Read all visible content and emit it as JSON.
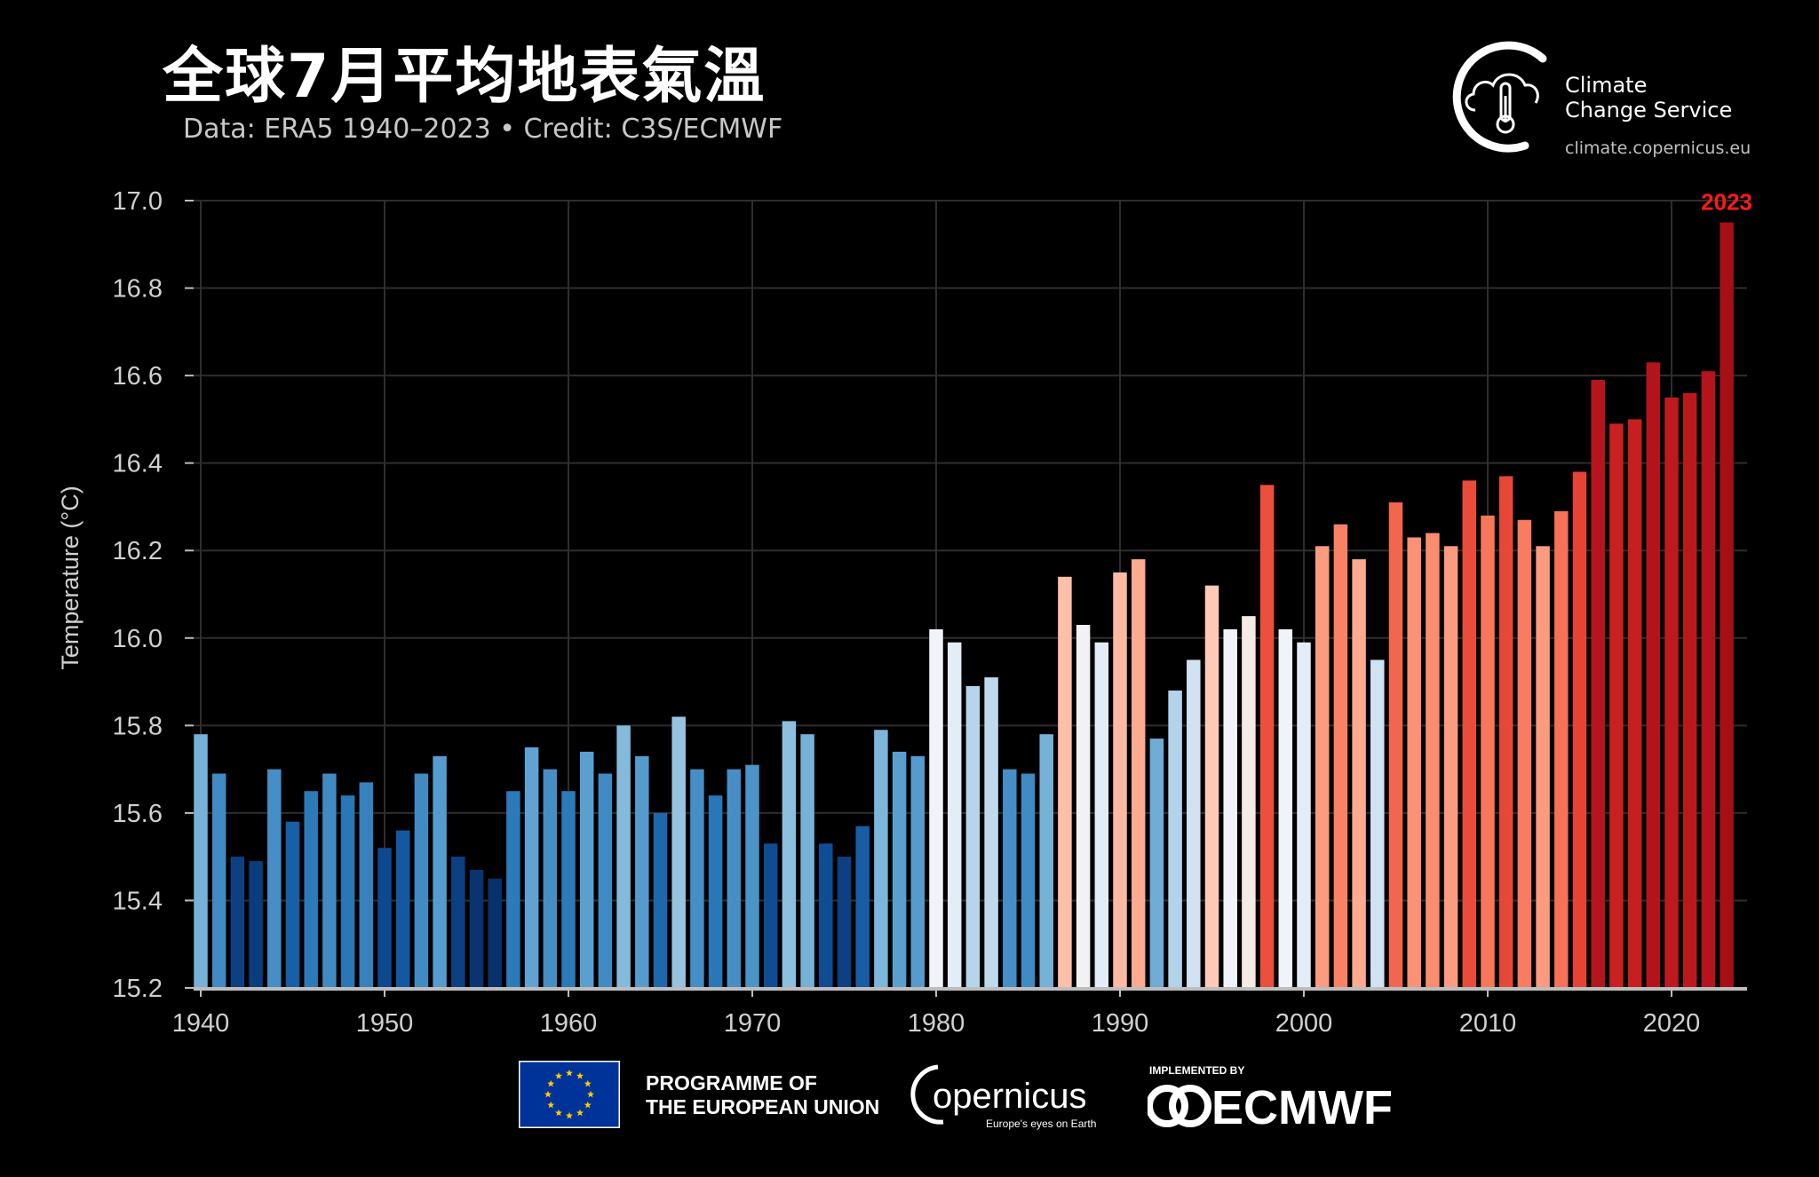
{
  "header": {
    "title": "全球7月平均地表氣溫",
    "subtitle": "Data: ERA5 1940–2023 • Credit: C3S/ECMWF"
  },
  "branding": {
    "c3s_line1": "Climate",
    "c3s_line2": "Change Service",
    "c3s_url": "climate.copernicus.eu",
    "eu_line1": "PROGRAMME OF",
    "eu_line2": "THE EUROPEAN UNION",
    "copernicus_name": "opernicus",
    "copernicus_tagline": "Europe's eyes on Earth",
    "ecmwf_tag": "IMPLEMENTED BY",
    "ecmwf_name": "ECMWF"
  },
  "chart_data": {
    "type": "bar",
    "title": "全球7月平均地表氣溫",
    "subtitle": "Data: ERA5 1940–2023 • Credit: C3S/ECMWF",
    "xlabel": "",
    "ylabel": "Temperature (°C)",
    "ylim": [
      15.2,
      17.0
    ],
    "xlim": [
      1940,
      2023
    ],
    "yticks": [
      "15.2",
      "15.4",
      "15.6",
      "15.8",
      "16.0",
      "16.2",
      "16.4",
      "16.6",
      "16.8",
      "17.0"
    ],
    "xticks": [
      "1940",
      "1950",
      "1960",
      "1970",
      "1980",
      "1990",
      "2000",
      "2010",
      "2020"
    ],
    "grid": true,
    "highlight": {
      "label": "2023",
      "color": "#ff1a1a"
    },
    "color_scale": "blue (coolest) to white to dark red (warmest)",
    "categories": [
      1940,
      1941,
      1942,
      1943,
      1944,
      1945,
      1946,
      1947,
      1948,
      1949,
      1950,
      1951,
      1952,
      1953,
      1954,
      1955,
      1956,
      1957,
      1958,
      1959,
      1960,
      1961,
      1962,
      1963,
      1964,
      1965,
      1966,
      1967,
      1968,
      1969,
      1970,
      1971,
      1972,
      1973,
      1974,
      1975,
      1976,
      1977,
      1978,
      1979,
      1980,
      1981,
      1982,
      1983,
      1984,
      1985,
      1986,
      1987,
      1988,
      1989,
      1990,
      1991,
      1992,
      1993,
      1994,
      1995,
      1996,
      1997,
      1998,
      1999,
      2000,
      2001,
      2002,
      2003,
      2004,
      2005,
      2006,
      2007,
      2008,
      2009,
      2010,
      2011,
      2012,
      2013,
      2014,
      2015,
      2016,
      2017,
      2018,
      2019,
      2020,
      2021,
      2022,
      2023
    ],
    "values": [
      15.78,
      15.69,
      15.5,
      15.49,
      15.7,
      15.58,
      15.65,
      15.69,
      15.64,
      15.67,
      15.52,
      15.56,
      15.69,
      15.73,
      15.5,
      15.47,
      15.45,
      15.65,
      15.75,
      15.7,
      15.65,
      15.74,
      15.69,
      15.8,
      15.73,
      15.6,
      15.82,
      15.7,
      15.64,
      15.7,
      15.71,
      15.53,
      15.81,
      15.78,
      15.53,
      15.5,
      15.57,
      15.79,
      15.74,
      15.73,
      16.02,
      15.99,
      15.89,
      15.91,
      15.7,
      15.69,
      15.78,
      16.14,
      16.03,
      15.99,
      16.15,
      16.18,
      15.77,
      15.88,
      15.95,
      16.12,
      16.02,
      16.05,
      16.35,
      16.02,
      15.99,
      16.21,
      16.26,
      16.18,
      15.95,
      16.31,
      16.23,
      16.24,
      16.21,
      16.36,
      16.28,
      16.37,
      16.27,
      16.21,
      16.29,
      16.38,
      16.59,
      16.49,
      16.5,
      16.63,
      16.55,
      16.56,
      16.61,
      16.95
    ]
  },
  "colors": {
    "background": "#000000",
    "cold": "#08306b",
    "neutral": "#f7fbff",
    "warm": "#a50f15",
    "highlight": "#ff1a1a",
    "eu_blue": "#003399",
    "eu_star": "#ffcc00"
  }
}
